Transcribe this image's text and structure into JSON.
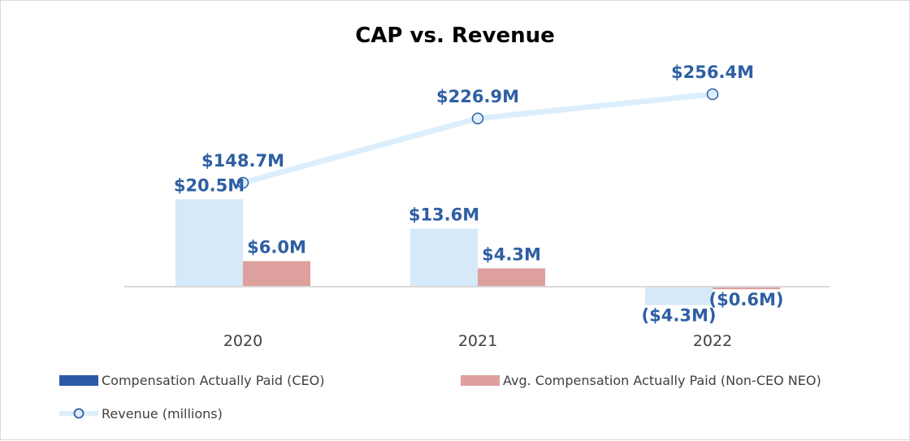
{
  "chart_data": {
    "type": "bar",
    "title": "CAP vs. Revenue",
    "categories": [
      "2020",
      "2021",
      "2022"
    ],
    "series": [
      {
        "name": "Compensation Actually Paid (CEO)",
        "kind": "bar",
        "values": [
          20.5,
          13.6,
          -4.3
        ],
        "labels": [
          "$20.5M",
          "$13.6M",
          "($4.3M)"
        ],
        "color": "#d6e9f8",
        "legend_color": "#2b58a6"
      },
      {
        "name": "Avg. Compensation Actually Paid (Non-CEO NEO)",
        "kind": "bar",
        "values": [
          6.0,
          4.3,
          -0.6
        ],
        "labels": [
          "$6.0M",
          "$4.3M",
          "($0.6M)"
        ],
        "color": "#dda09d",
        "legend_color": "#dda09d"
      },
      {
        "name": "Revenue (millions)",
        "kind": "line",
        "axis": "secondary",
        "values": [
          148.7,
          226.9,
          256.4
        ],
        "labels": [
          "$148.7M",
          "$226.9M",
          "$256.4M"
        ],
        "color": "#dceefb",
        "marker_edge": "#2e5fa3"
      }
    ],
    "label_color": "#2e5fa3",
    "xlabel": "",
    "ylabel": "",
    "legend_position": "bottom"
  }
}
